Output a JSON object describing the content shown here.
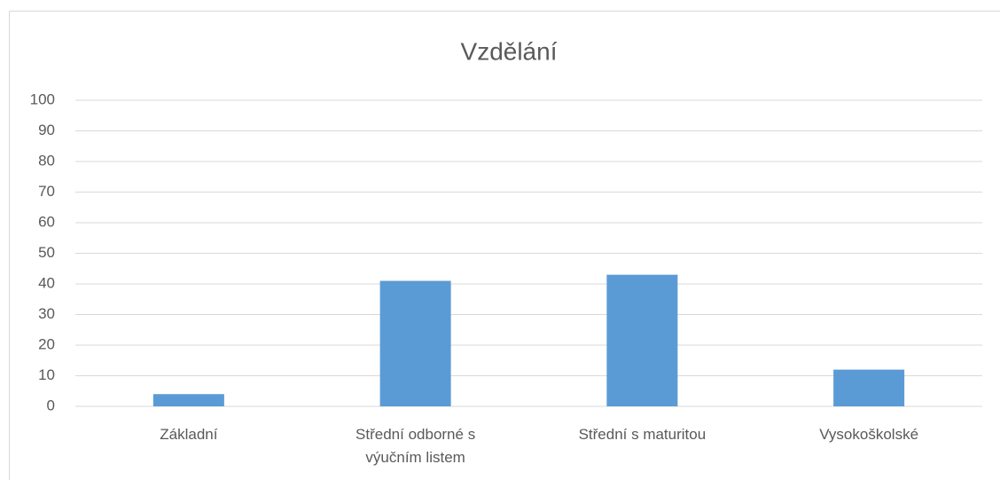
{
  "chart_data": {
    "type": "bar",
    "title": "Vzdělání",
    "categories": [
      "Základní",
      "Střední odborné s výučním listem",
      "Střední s maturitou",
      "Vysokoškolské"
    ],
    "values": [
      4,
      41,
      43,
      12
    ],
    "color": "#5b9bd5",
    "ylim": [
      0,
      100
    ],
    "yticks": [
      0,
      10,
      20,
      30,
      40,
      50,
      60,
      70,
      80,
      90,
      100
    ],
    "grid": true
  }
}
